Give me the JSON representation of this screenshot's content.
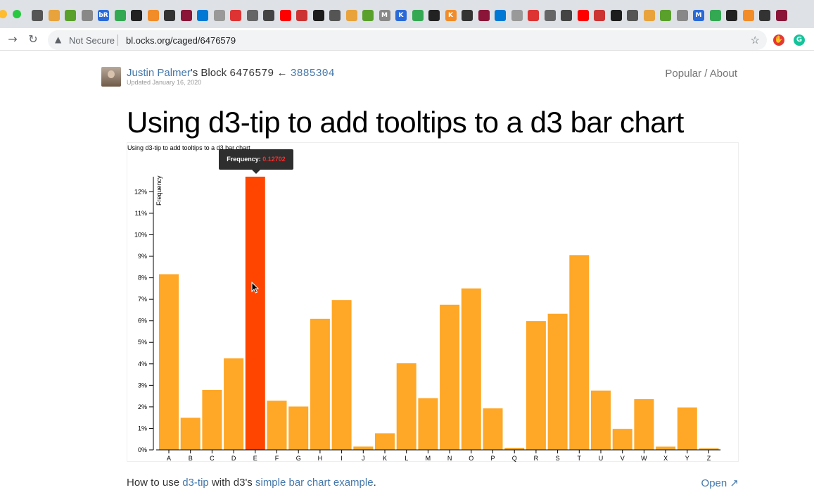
{
  "browser": {
    "security_label": "Not Secure",
    "url": "bl.ocks.org/caged/6476579",
    "bookmark_labels": [
      "bR",
      "M",
      "K",
      "K",
      "M"
    ]
  },
  "header": {
    "author": "Justin Palmer",
    "possessive": "'s Block",
    "block_id": "6476579",
    "arrow": "←",
    "parent_id": "3885304",
    "updated": "Updated January 16, 2020",
    "popular": "Popular",
    "divider": " / ",
    "about": "About"
  },
  "page_title": "Using d3-tip to add tooltips to a d3 bar chart",
  "tooltip": {
    "label": "Frequency:",
    "value": "0.12702"
  },
  "footer": {
    "prefix": "How to use ",
    "link1": "d3-tip",
    "middle": " with d3's ",
    "link2": "simple bar chart example",
    "suffix": ".",
    "open_label": "Open"
  },
  "colors": {
    "bar": "#ffa726",
    "bar_highlight": "#ff4500",
    "link": "#4477aa"
  },
  "chart_data": {
    "type": "bar",
    "title": "Using d3-tip to add tooltips to a d3 bar chart",
    "ylabel": "Frequency",
    "xlabel": "",
    "categories": [
      "A",
      "B",
      "C",
      "D",
      "E",
      "F",
      "G",
      "H",
      "I",
      "J",
      "K",
      "L",
      "M",
      "N",
      "O",
      "P",
      "Q",
      "R",
      "S",
      "T",
      "U",
      "V",
      "W",
      "X",
      "Y",
      "Z"
    ],
    "values": [
      0.08167,
      0.01492,
      0.02782,
      0.04253,
      0.12702,
      0.02288,
      0.02015,
      0.06094,
      0.06966,
      0.00153,
      0.00772,
      0.04025,
      0.02406,
      0.06749,
      0.07507,
      0.01929,
      0.00095,
      0.05987,
      0.06327,
      0.09056,
      0.02758,
      0.00978,
      0.0236,
      0.0015,
      0.01974,
      0.00074
    ],
    "ylim": [
      0,
      0.127
    ],
    "yticks": [
      0,
      0.01,
      0.02,
      0.03,
      0.04,
      0.05,
      0.06,
      0.07,
      0.08,
      0.09,
      0.1,
      0.11,
      0.12
    ],
    "ytick_labels": [
      "0%",
      "1%",
      "2%",
      "3%",
      "4%",
      "5%",
      "6%",
      "7%",
      "8%",
      "9%",
      "10%",
      "11%",
      "12%"
    ],
    "highlighted": "E",
    "grid": false
  }
}
